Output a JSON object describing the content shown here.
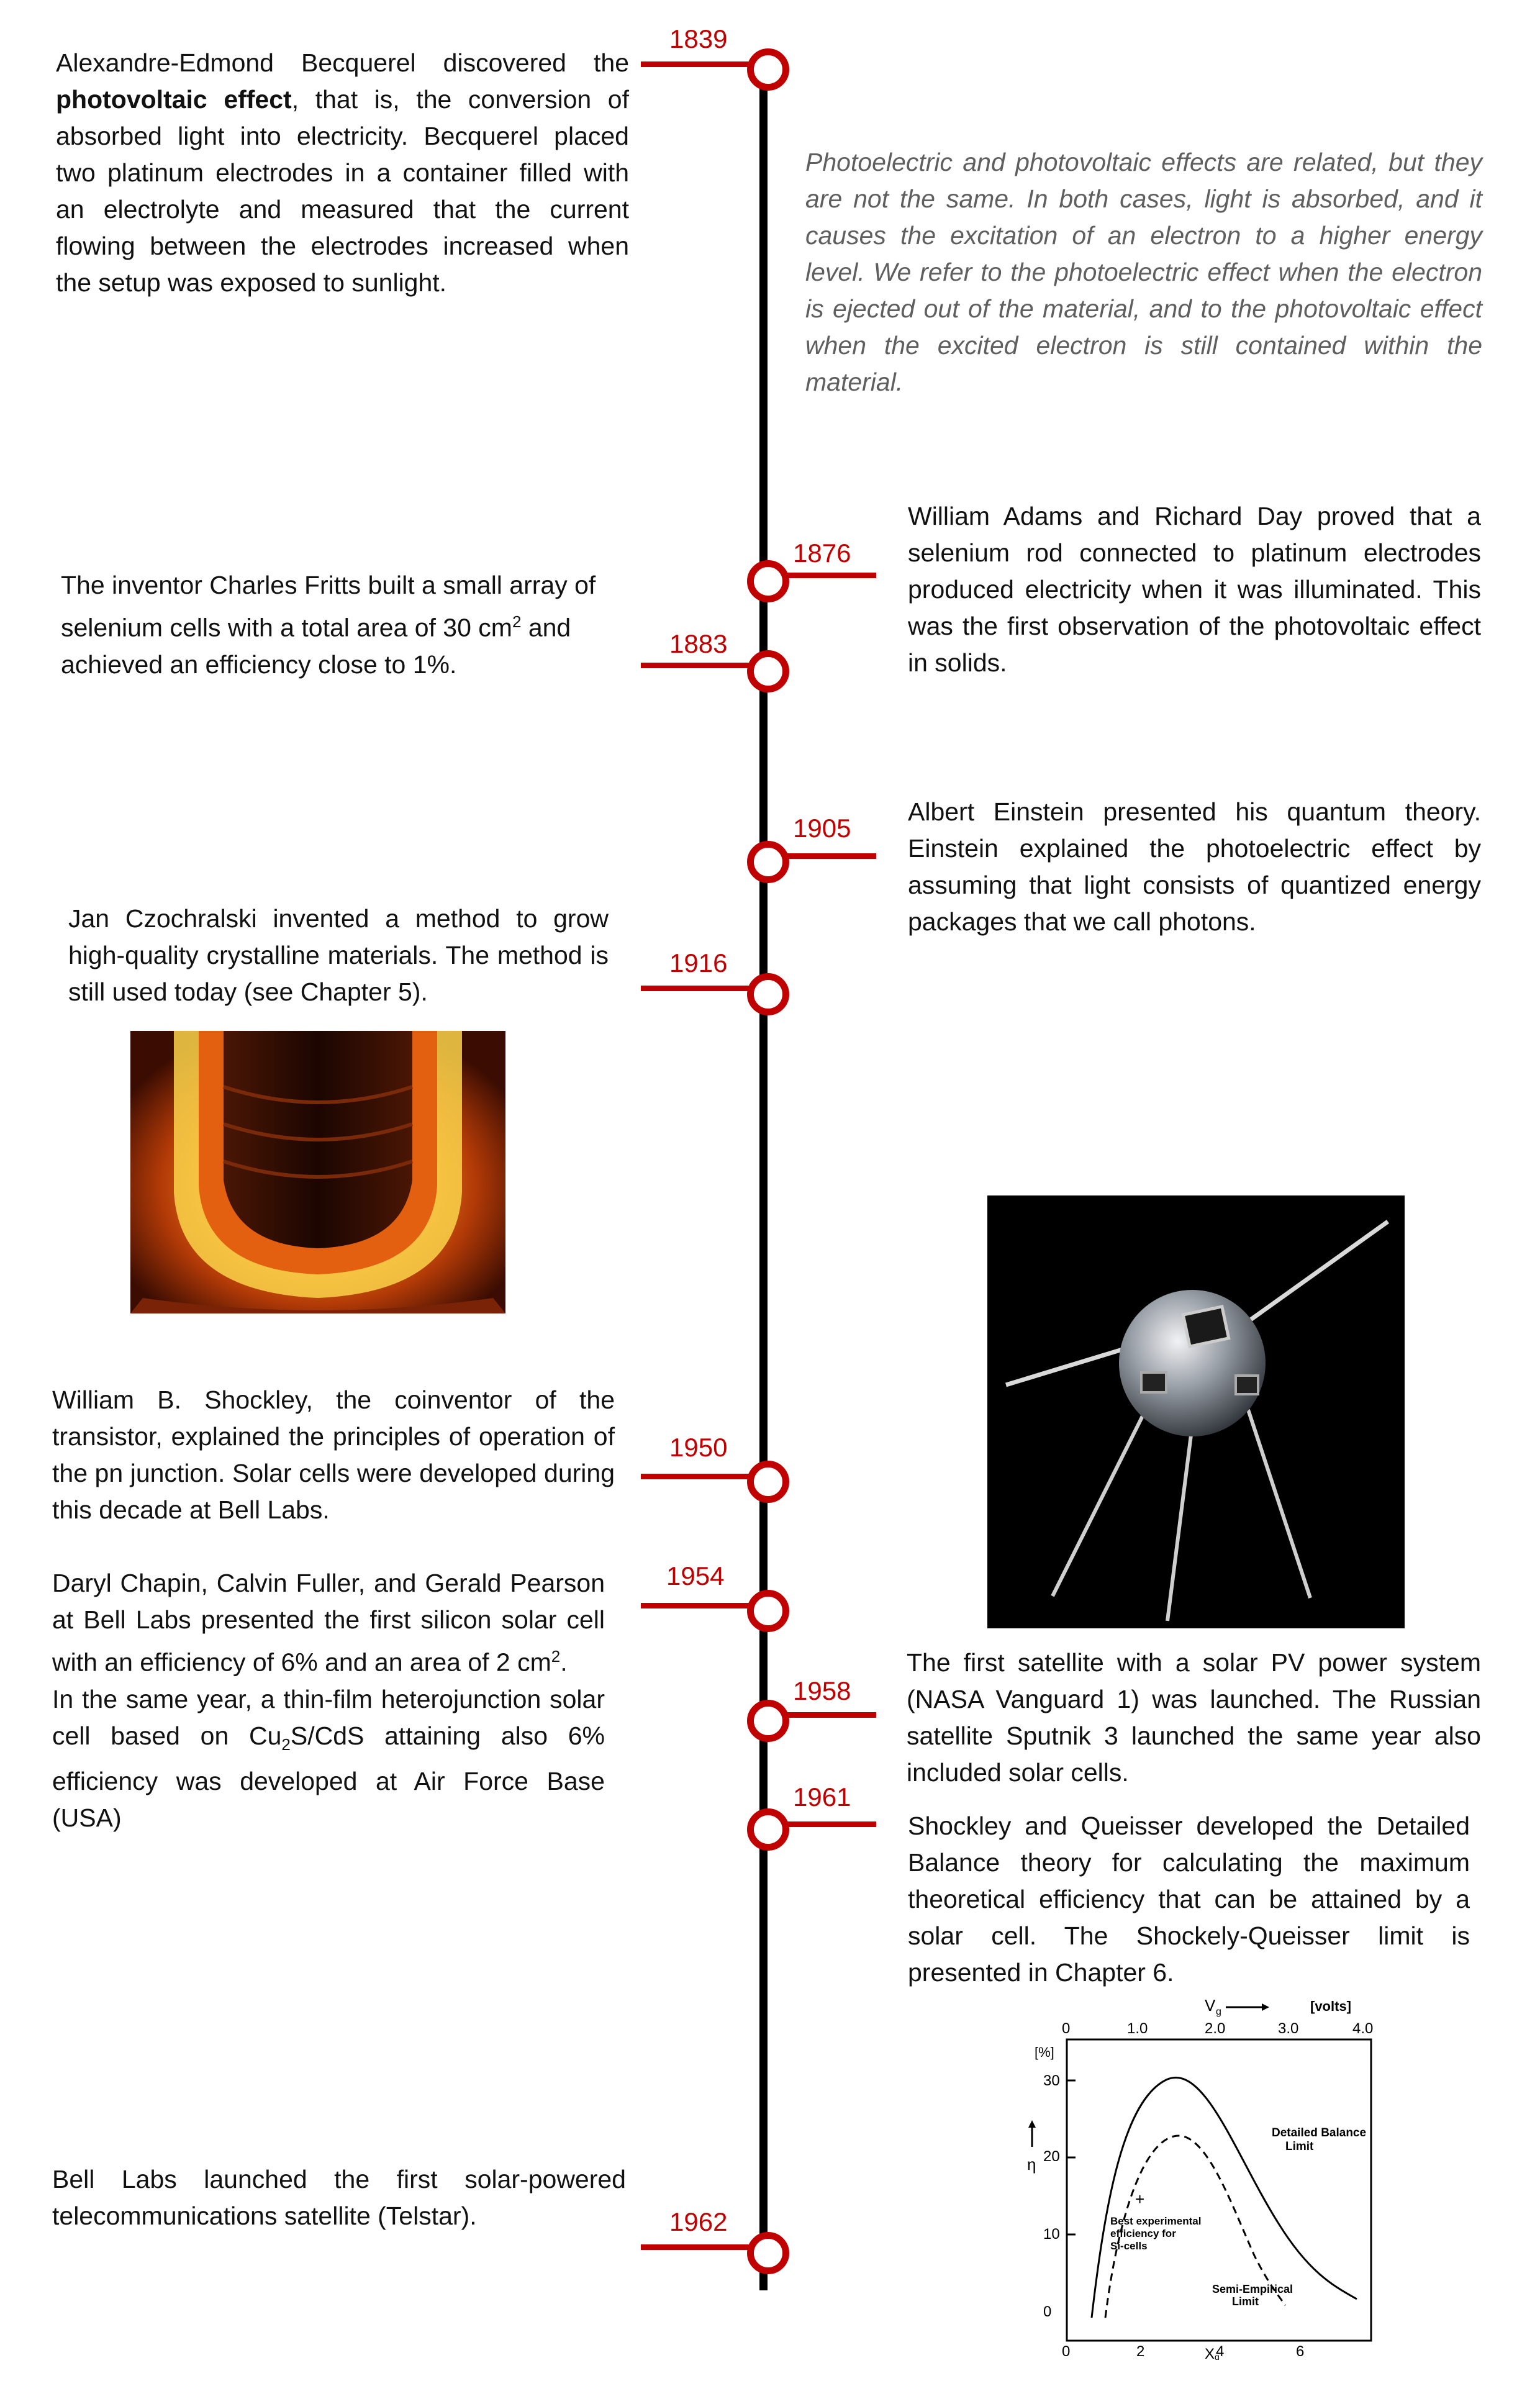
{
  "intro_note": "Photoelectric and photovoltaic effects are related, but they are not the same. In both cases, light is absorbed, and it causes the excitation of an electron to a higher energy level. We refer to the photoelectric effect when the electron is ejected out of the material, and to the photovoltaic effect when the excited electron is still contained within the material.",
  "events": {
    "e1839": {
      "year": "1839",
      "pre": "Alexandre-Edmond Becquerel discovered the ",
      "bold": "photovoltaic effect",
      "post": ", that is, the conversion of absorbed light into electricity. Becquerel placed two platinum electrodes in a container filled with an electrolyte and measured that the current flowing between the electrodes increased when the setup was exposed to sunlight."
    },
    "e1876": {
      "year": "1876",
      "text": "William Adams and Richard Day proved that a selenium rod connected to platinum electrodes produced electricity when it was illuminated. This was the first observation of the photovoltaic effect in solids."
    },
    "e1883": {
      "year": "1883",
      "text_a": "The inventor Charles Fritts built a small array of selenium cells with a total area of 30 cm",
      "sup": "2",
      "text_b": " and achieved an efficiency close to 1%."
    },
    "e1905": {
      "year": "1905",
      "text": "Albert Einstein presented his quantum theory. Einstein explained the photoelectric effect by assuming that light consists of quantized energy packages that we call  photons."
    },
    "e1916": {
      "year": "1916",
      "text": "Jan Czochralski invented a method to grow high-quality crystalline materials. The method is still used today (see Chapter 5)."
    },
    "e1950": {
      "year": "1950",
      "text": "William B. Shockley, the coinventor of the transistor, explained the principles of operation of the pn junction. Solar cells were developed during this decade at Bell Labs."
    },
    "e1954": {
      "year": "1954",
      "text_a": "Daryl Chapin, Calvin Fuller, and Gerald Pearson at Bell Labs presented the first silicon solar cell with an efficiency of 6% and an area of 2 cm",
      "sup": "2",
      "text_b": ".",
      "text_c": "In the same year, a thin-film heterojunction solar cell based on Cu",
      "sub1": "2",
      "text_d": "S/CdS attaining also 6% efficiency was developed at Air Force Base (USA)"
    },
    "e1958": {
      "year": "1958",
      "text": "The first satellite with a solar PV power system (NASA Vanguard 1) was launched. The Russian satellite Sputnik 3 launched the same year also included solar cells."
    },
    "e1961": {
      "year": "1961",
      "text": "Shockley and Queisser developed the Detailed Balance theory for calculating the maximum theoretical efficiency that can be attained by a solar cell. The Shockely-Queisser limit is presented in Chapter 6."
    },
    "e1962": {
      "year": "1962",
      "text": "Bell Labs launched the first solar-powered telecommunications satellite (Telstar)."
    }
  },
  "graph": {
    "top_axis_label": "V",
    "top_axis_sub": "g",
    "top_axis_unit": "[volts]",
    "top_ticks": [
      "0",
      "1.0",
      "2.0",
      "3.0",
      "4.0"
    ],
    "y_unit": "[%]",
    "y_ticks": [
      "30",
      "20",
      "10",
      "0"
    ],
    "y_symbol": "η",
    "x_ticks": [
      "0",
      "2",
      "4",
      "6"
    ],
    "x_axis_label": "X",
    "x_axis_sub": "g",
    "label_detailed_1": "Detailed  Balance",
    "label_detailed_2": "Limit",
    "label_best_1": "Best  experimental",
    "label_best_2": "efficiency  for",
    "label_best_3": "Si-cells",
    "label_semi_1": "Semi-Empirical",
    "label_semi_2": "Limit",
    "plus_mark": "+"
  },
  "colors": {
    "accent": "#c00000",
    "note": "#5f5f5f"
  }
}
